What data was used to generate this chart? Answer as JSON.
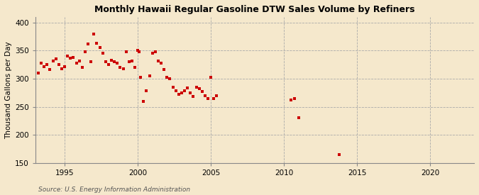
{
  "title": "Monthly Hawaii Regular Gasoline DTW Sales Volume by Refiners",
  "ylabel": "Thousand Gallons per Day",
  "source": "Source: U.S. Energy Information Administration",
  "background_color": "#f5e8cc",
  "dot_color": "#cc0000",
  "xlim": [
    1993.0,
    2023.0
  ],
  "ylim": [
    150,
    410
  ],
  "yticks": [
    150,
    200,
    250,
    300,
    350,
    400
  ],
  "xticks": [
    1995,
    2000,
    2005,
    2010,
    2015,
    2020
  ],
  "data_x": [
    1993.2,
    1993.4,
    1993.6,
    1993.8,
    1994.0,
    1994.2,
    1994.4,
    1994.6,
    1994.8,
    1995.0,
    1995.2,
    1995.4,
    1995.6,
    1995.8,
    1996.0,
    1996.2,
    1996.4,
    1996.6,
    1996.8,
    1997.0,
    1997.2,
    1997.4,
    1997.6,
    1997.8,
    1998.0,
    1998.2,
    1998.4,
    1998.6,
    1998.8,
    1999.0,
    1999.2,
    1999.4,
    1999.6,
    1999.8,
    2000.0,
    2000.1,
    2000.2,
    2000.4,
    2000.6,
    2000.8,
    2001.0,
    2001.2,
    2001.4,
    2001.6,
    2001.8,
    2002.0,
    2002.2,
    2002.4,
    2002.6,
    2002.8,
    2003.0,
    2003.2,
    2003.4,
    2003.6,
    2003.8,
    2004.0,
    2004.2,
    2004.4,
    2004.6,
    2004.8,
    2005.0,
    2005.2,
    2005.4,
    2010.5,
    2010.7,
    2011.0,
    2013.8
  ],
  "data_y": [
    310,
    328,
    322,
    325,
    316,
    332,
    335,
    325,
    318,
    322,
    340,
    336,
    338,
    328,
    332,
    320,
    348,
    362,
    330,
    380,
    363,
    355,
    345,
    330,
    325,
    333,
    330,
    328,
    320,
    318,
    348,
    330,
    332,
    320,
    350,
    348,
    302,
    260,
    278,
    305,
    346,
    348,
    332,
    328,
    316,
    302,
    300,
    285,
    278,
    272,
    275,
    278,
    283,
    275,
    268,
    285,
    282,
    277,
    270,
    265,
    302,
    265,
    270,
    262,
    265,
    230,
    165
  ]
}
